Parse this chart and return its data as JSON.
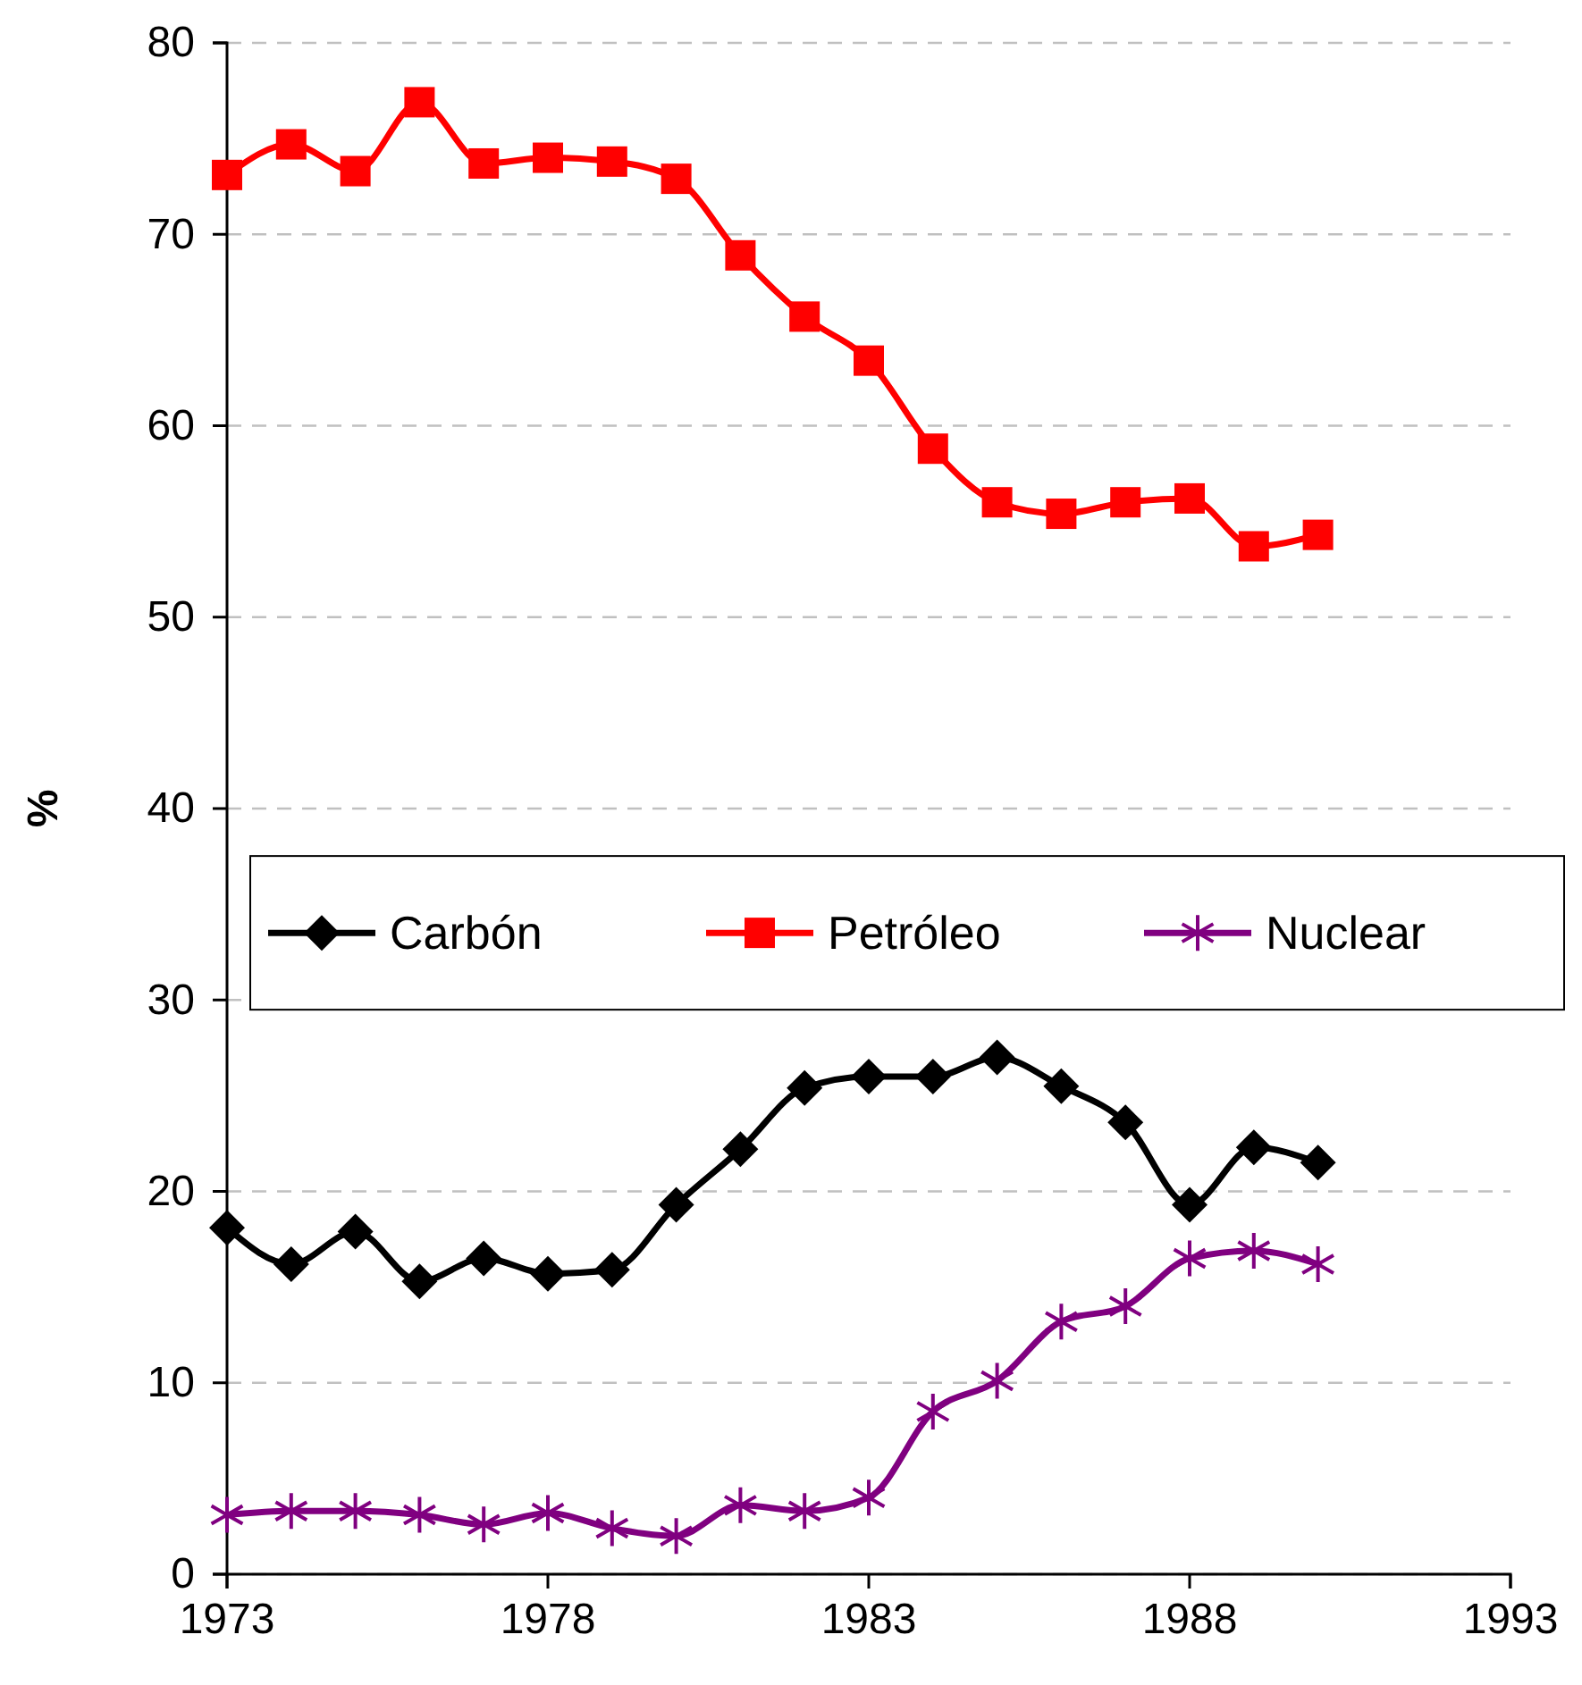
{
  "chart_data": {
    "type": "line",
    "ylabel": "%",
    "x": [
      1973,
      1974,
      1975,
      1976,
      1977,
      1978,
      1979,
      1980,
      1981,
      1982,
      1983,
      1984,
      1985,
      1986,
      1987,
      1988,
      1989,
      1990
    ],
    "xlim": [
      1973,
      1993
    ],
    "xticks": [
      1973,
      1978,
      1983,
      1988,
      1993
    ],
    "ylim": [
      0,
      80
    ],
    "yticks": [
      0,
      10,
      20,
      30,
      40,
      50,
      60,
      70,
      80
    ],
    "grid": "y",
    "legend": "center",
    "series": [
      {
        "name": "Carbón",
        "color": "#000000",
        "marker": "diamond",
        "values": [
          18.1,
          16.2,
          17.9,
          15.3,
          16.5,
          15.7,
          15.9,
          19.3,
          22.2,
          25.4,
          26.0,
          26.0,
          27.0,
          25.5,
          23.6,
          19.3,
          22.3,
          21.5
        ]
      },
      {
        "name": "Petróleo",
        "color": "#ff0000",
        "marker": "square",
        "values": [
          73.1,
          74.7,
          73.3,
          76.9,
          73.7,
          74.0,
          73.8,
          72.9,
          68.9,
          65.7,
          63.4,
          58.8,
          56.0,
          55.4,
          56.0,
          56.2,
          53.7,
          54.3
        ]
      },
      {
        "name": "Nuclear",
        "color": "#800080",
        "marker": "cross",
        "values": [
          3.1,
          3.3,
          3.3,
          3.1,
          2.6,
          3.2,
          2.4,
          2.0,
          3.6,
          3.3,
          4.0,
          8.5,
          10.1,
          13.2,
          14.0,
          16.5,
          16.9,
          16.2
        ]
      }
    ]
  }
}
